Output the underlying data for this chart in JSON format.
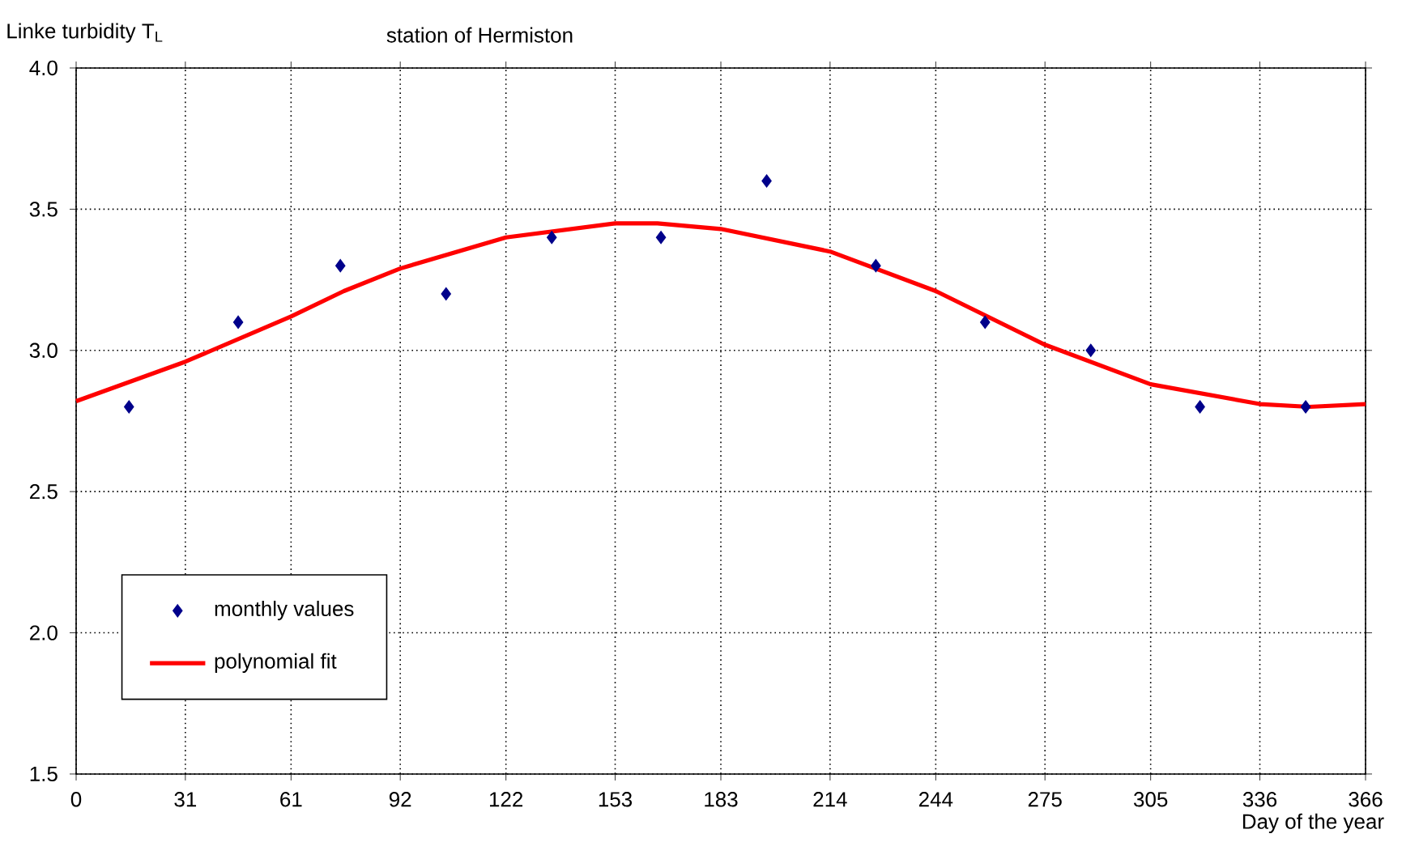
{
  "chart_data": {
    "type": "scatter",
    "title": "Linke turbidity T$_{L}$",
    "subtitle": "station of Hermiston",
    "xlabel": "Day of the year",
    "xlim": [
      0,
      366
    ],
    "xticks": [
      0,
      31,
      61,
      92,
      122,
      153,
      183,
      214,
      244,
      275,
      305,
      336,
      366
    ],
    "ylim": [
      1.5,
      4.0
    ],
    "yticks": [
      {
        "value": 1.5,
        "label": "1.5"
      },
      {
        "value": 2.0,
        "label": "2.0"
      },
      {
        "value": 2.5,
        "label": "2.5"
      },
      {
        "value": 3.0,
        "label": "3.0"
      },
      {
        "value": 3.5,
        "label": "3.5"
      },
      {
        "value": 4.0,
        "label": "4.0"
      }
    ],
    "grid": true,
    "legend": "bottom left",
    "series": [
      {
        "name": "monthly values",
        "marker": "diamond",
        "color": "#00008b",
        "x": [
          15,
          46,
          75,
          105,
          135,
          166,
          196,
          227,
          258,
          288,
          319,
          349
        ],
        "values": [
          2.8,
          3.1,
          3.3,
          3.2,
          3.4,
          3.4,
          3.6,
          3.3,
          3.1,
          3.0,
          2.8,
          2.8
        ]
      },
      {
        "name": "polynomial fit",
        "type": "line",
        "marker": "none",
        "line_style": "solid",
        "color": "#ff0000",
        "x": [
          0,
          31,
          61,
          76,
          92,
          122,
          153,
          165,
          183,
          214,
          244,
          275,
          305,
          336,
          350,
          366
        ],
        "values": [
          2.82,
          2.96,
          3.12,
          3.21,
          3.29,
          3.4,
          3.45,
          3.45,
          3.43,
          3.35,
          3.21,
          3.02,
          2.88,
          2.81,
          2.8,
          2.81
        ]
      }
    ]
  }
}
